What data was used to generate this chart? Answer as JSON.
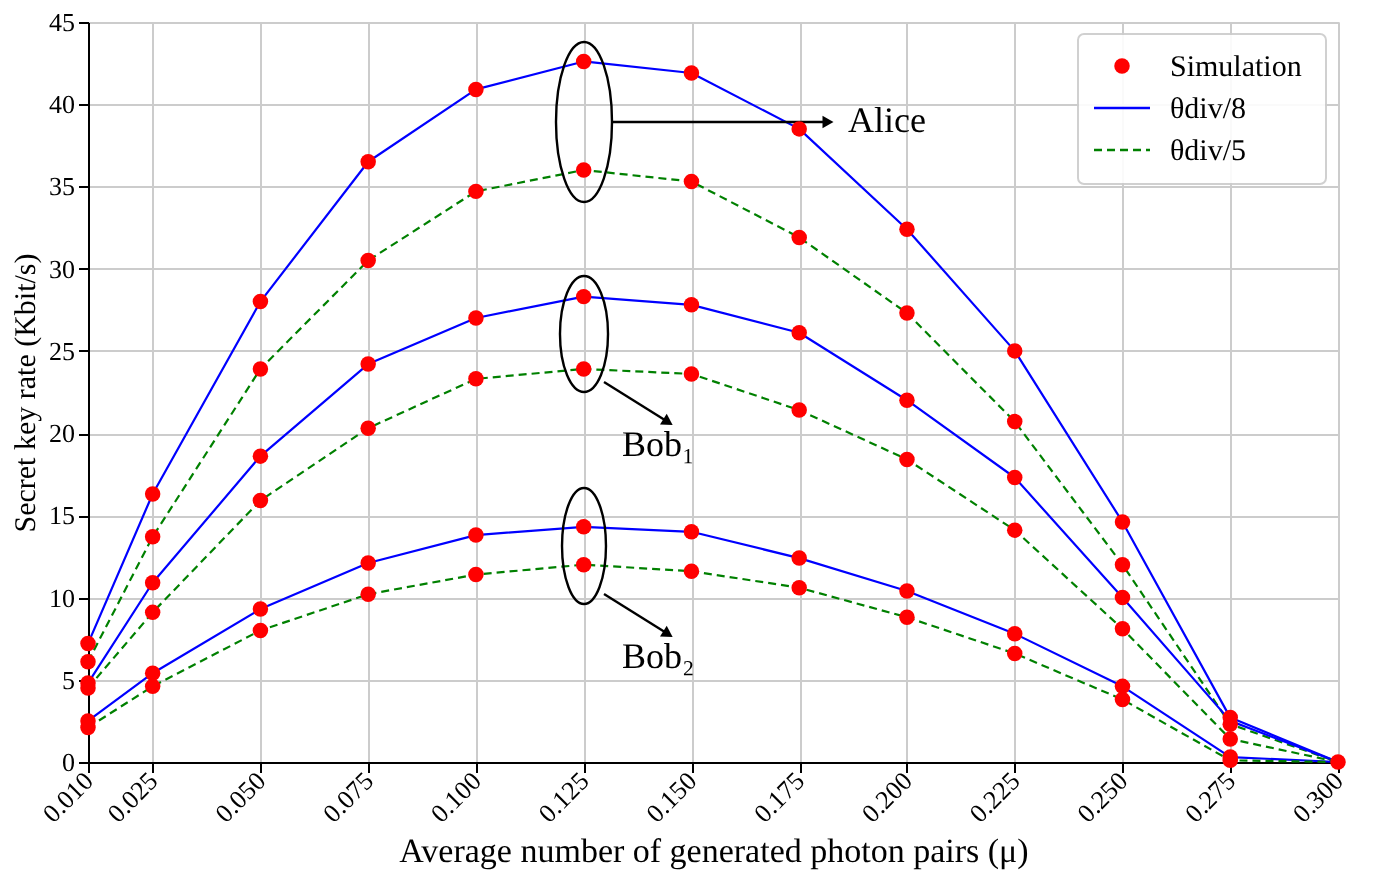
{
  "chart_data": {
    "type": "line",
    "xlabel": "Average number of generated photon pairs (μ)",
    "ylabel": "Secret key rate (Kbit/s)",
    "x": [
      0.01,
      0.025,
      0.05,
      0.075,
      0.1,
      0.125,
      0.15,
      0.175,
      0.2,
      0.225,
      0.25,
      0.275,
      0.3
    ],
    "xlim": [
      0.01,
      0.3
    ],
    "ylim": [
      0,
      45
    ],
    "xticks": [
      {
        "value": 0.01,
        "label": "0.010"
      },
      {
        "value": 0.025,
        "label": "0.025"
      },
      {
        "value": 0.05,
        "label": "0.050"
      },
      {
        "value": 0.075,
        "label": "0.075"
      },
      {
        "value": 0.1,
        "label": "0.100"
      },
      {
        "value": 0.125,
        "label": "0.125"
      },
      {
        "value": 0.15,
        "label": "0.150"
      },
      {
        "value": 0.175,
        "label": "0.175"
      },
      {
        "value": 0.2,
        "label": "0.200"
      },
      {
        "value": 0.225,
        "label": "0.225"
      },
      {
        "value": 0.25,
        "label": "0.250"
      },
      {
        "value": 0.275,
        "label": "0.275"
      },
      {
        "value": 0.3,
        "label": "0.300"
      }
    ],
    "yticks": [
      0,
      5,
      10,
      15,
      20,
      25,
      30,
      35,
      40,
      45
    ],
    "grid": true,
    "legend": "top right",
    "series": [
      {
        "name": "Simulation",
        "type": "scatter",
        "marker": "circle",
        "color": "#ff0000",
        "x": [
          0.01,
          0.025,
          0.05,
          0.075,
          0.1,
          0.125,
          0.15,
          0.175,
          0.2,
          0.225,
          0.25,
          0.275,
          0.3,
          0.01,
          0.025,
          0.05,
          0.075,
          0.1,
          0.125,
          0.15,
          0.175,
          0.2,
          0.225,
          0.25,
          0.275,
          0.01,
          0.025,
          0.05,
          0.075,
          0.1,
          0.125,
          0.15,
          0.175,
          0.2,
          0.225,
          0.25,
          0.01,
          0.025,
          0.05,
          0.075,
          0.1,
          0.125,
          0.15,
          0.175,
          0.2,
          0.225,
          0.25,
          0.275,
          0.01,
          0.025,
          0.05,
          0.075,
          0.1,
          0.125,
          0.15,
          0.175,
          0.2,
          0.225,
          0.25,
          0.275,
          0.01,
          0.025,
          0.05,
          0.075,
          0.1,
          0.125,
          0.15,
          0.175,
          0.2,
          0.225,
          0.25,
          0.275
        ],
        "values": [
          7.2,
          16.3,
          28,
          36.5,
          40.9,
          42.6,
          41.9,
          38.5,
          32.4,
          25,
          14.6,
          2.7,
          0,
          6.1,
          13.7,
          23.9,
          30.5,
          34.7,
          36,
          35.3,
          31.9,
          27.3,
          20.7,
          12,
          2.3,
          4.8,
          10.9,
          18.6,
          24.2,
          27,
          28.3,
          27.8,
          26.1,
          22,
          17.3,
          10,
          4.5,
          9.1,
          15.9,
          20.3,
          23.3,
          23.9,
          23.6,
          21.4,
          18.4,
          14.1,
          8.1,
          1.4,
          2.5,
          5.4,
          9.3,
          12.1,
          13.8,
          14.3,
          14,
          12.4,
          10.4,
          7.8,
          4.6,
          0.3,
          2.1,
          4.6,
          8,
          10.2,
          11.4,
          12,
          11.6,
          10.6,
          8.8,
          6.6,
          3.8,
          0.1
        ]
      },
      {
        "name": "θdiv/8",
        "color": "#0000ff",
        "line_style": "solid",
        "values": [
          7.2,
          16.3,
          28,
          36.5,
          40.9,
          42.6,
          41.9,
          38.5,
          32.4,
          25,
          14.6,
          2.7,
          0
        ]
      },
      {
        "name": "θdiv/5",
        "color": "#008000",
        "line_style": "dashed",
        "values": [
          6.1,
          13.7,
          23.9,
          30.5,
          34.7,
          36,
          35.3,
          31.9,
          27.3,
          20.7,
          12,
          2.3,
          0
        ]
      },
      {
        "color": "#0000ff",
        "line_style": "solid",
        "values": [
          4.8,
          10.9,
          18.6,
          24.2,
          27,
          28.3,
          27.8,
          26.1,
          22,
          17.3,
          10,
          2.5,
          0
        ]
      },
      {
        "color": "#008000",
        "line_style": "dashed",
        "values": [
          4.5,
          9.1,
          15.9,
          20.3,
          23.3,
          23.9,
          23.6,
          21.4,
          18.4,
          14.1,
          8.1,
          1.4,
          0
        ]
      },
      {
        "color": "#0000ff",
        "line_style": "solid",
        "values": [
          2.5,
          5.4,
          9.3,
          12.1,
          13.8,
          14.3,
          14,
          12.4,
          10.4,
          7.8,
          4.6,
          0.3,
          0
        ]
      },
      {
        "color": "#008000",
        "line_style": "dashed",
        "values": [
          2.1,
          4.6,
          8,
          10.2,
          11.4,
          12,
          11.6,
          10.6,
          8.8,
          6.6,
          3.8,
          0.1,
          0
        ]
      }
    ],
    "annotations": [
      "Alice",
      "Bob₁",
      "Bob₂"
    ]
  }
}
